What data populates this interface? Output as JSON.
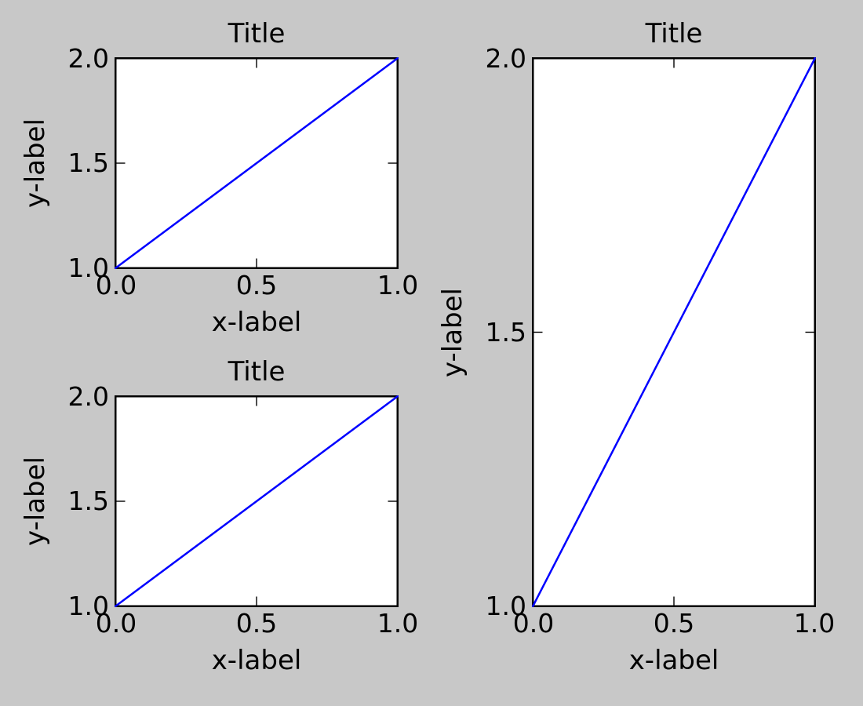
{
  "figure": {
    "background_color": "#c8c8c8",
    "plot_background_color": "#ffffff",
    "spine_color": "#000000",
    "text_color": "#000000",
    "tick_color": "#000000"
  },
  "chart_data": [
    {
      "id": "top-left",
      "type": "line",
      "title": "Title",
      "xlabel": "x-label",
      "ylabel": "y-label",
      "x": [
        0.0,
        1.0
      ],
      "y": [
        1.0,
        2.0
      ],
      "xlim": [
        0.0,
        1.0
      ],
      "ylim": [
        1.0,
        2.0
      ],
      "xticks": [
        0.0,
        0.5,
        1.0
      ],
      "yticks": [
        1.0,
        1.5,
        2.0
      ],
      "xtick_labels": [
        "0.0",
        "0.5",
        "1.0"
      ],
      "ytick_labels": [
        "1.0",
        "1.5",
        "2.0"
      ],
      "grid": false,
      "legend": "none",
      "tick_direction": "in",
      "line_color": "#0000ff"
    },
    {
      "id": "bottom-left",
      "type": "line",
      "title": "Title",
      "xlabel": "x-label",
      "ylabel": "y-label",
      "x": [
        0.0,
        1.0
      ],
      "y": [
        1.0,
        2.0
      ],
      "xlim": [
        0.0,
        1.0
      ],
      "ylim": [
        1.0,
        2.0
      ],
      "xticks": [
        0.0,
        0.5,
        1.0
      ],
      "yticks": [
        1.0,
        1.5,
        2.0
      ],
      "xtick_labels": [
        "0.0",
        "0.5",
        "1.0"
      ],
      "ytick_labels": [
        "1.0",
        "1.5",
        "2.0"
      ],
      "grid": false,
      "legend": "none",
      "tick_direction": "in",
      "line_color": "#0000ff"
    },
    {
      "id": "right",
      "type": "line",
      "title": "Title",
      "xlabel": "x-label",
      "ylabel": "y-label",
      "x": [
        0.0,
        1.0
      ],
      "y": [
        1.0,
        2.0
      ],
      "xlim": [
        0.0,
        1.0
      ],
      "ylim": [
        1.0,
        2.0
      ],
      "xticks": [
        0.0,
        0.5,
        1.0
      ],
      "yticks": [
        1.0,
        1.5,
        2.0
      ],
      "xtick_labels": [
        "0.0",
        "0.5",
        "1.0"
      ],
      "ytick_labels": [
        "1.0",
        "1.5",
        "2.0"
      ],
      "grid": false,
      "legend": "none",
      "tick_direction": "in",
      "line_color": "#0000ff"
    }
  ]
}
